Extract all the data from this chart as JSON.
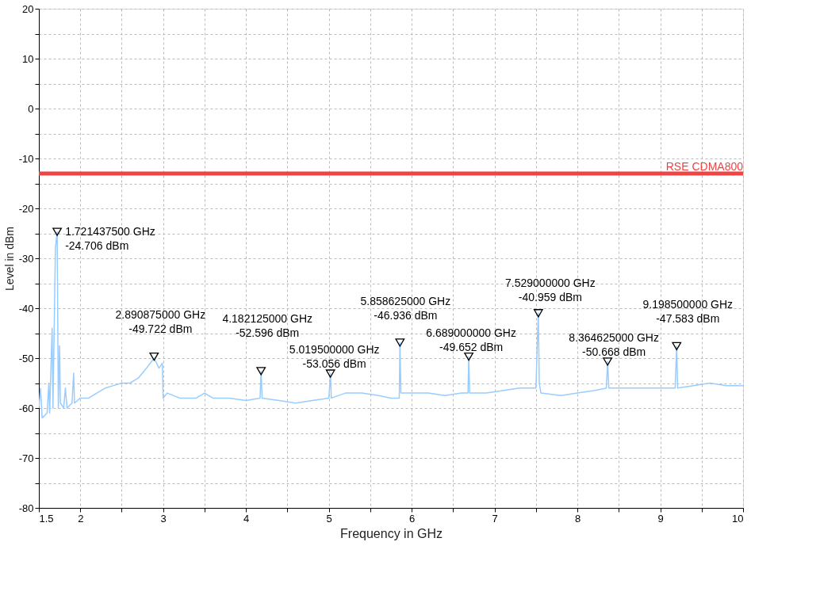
{
  "chart_data": {
    "type": "line",
    "xlabel": "Frequency in GHz",
    "ylabel": "Level in dBm",
    "xlim": [
      1.5,
      10
    ],
    "ylim": [
      -80,
      20
    ],
    "xticks": [
      1.5,
      2,
      {
        "value": 2.5,
        "label": null
      },
      3,
      {
        "value": 3.5,
        "label": null
      },
      4,
      {
        "value": 4.5,
        "label": null
      },
      5,
      {
        "value": 5.5,
        "label": null
      },
      6,
      {
        "value": 6.5,
        "label": null
      },
      7,
      {
        "value": 7.5,
        "label": null
      },
      8,
      {
        "value": 8.5,
        "label": null
      },
      9,
      {
        "value": 9.5,
        "label": null
      },
      10
    ],
    "yticks": [
      -80,
      {
        "value": -75,
        "label": null
      },
      -70,
      {
        "value": -65,
        "label": null
      },
      -60,
      {
        "value": -55,
        "label": null
      },
      -50,
      {
        "value": -45,
        "label": null
      },
      -40,
      {
        "value": -35,
        "label": null
      },
      -30,
      {
        "value": -25,
        "label": null
      },
      -20,
      {
        "value": -15,
        "label": null
      },
      -10,
      {
        "value": -5,
        "label": null
      },
      0,
      {
        "value": 5,
        "label": null
      },
      10,
      {
        "value": 15,
        "label": null
      },
      20
    ],
    "grid": true,
    "line_style": "solid",
    "series": [
      {
        "type": "line",
        "color": "#99ccff",
        "x": [
          1.5,
          1.52,
          1.54,
          1.6,
          1.62,
          1.63,
          1.66,
          1.67,
          1.7,
          1.721,
          1.735,
          1.75,
          1.76,
          1.8,
          1.82,
          1.84,
          1.9,
          1.92,
          1.93,
          2.0,
          2.1,
          2.2,
          2.3,
          2.4,
          2.5,
          2.6,
          2.7,
          2.8,
          2.891,
          2.95,
          2.99,
          3.0,
          3.05,
          3.2,
          3.4,
          3.5,
          3.6,
          3.8,
          4.0,
          4.17,
          4.182,
          4.195,
          4.4,
          4.6,
          4.8,
          5.0,
          5.0195,
          5.03,
          5.2,
          5.4,
          5.6,
          5.75,
          5.85,
          5.8586,
          5.87,
          6.0,
          6.2,
          6.4,
          6.6,
          6.68,
          6.689,
          6.7,
          6.9,
          7.1,
          7.3,
          7.5,
          7.52,
          7.529,
          7.54,
          7.56,
          7.8,
          8.0,
          8.2,
          8.35,
          8.3646,
          8.38,
          8.6,
          8.8,
          9.0,
          9.18,
          9.1985,
          9.21,
          9.4,
          9.6,
          9.8,
          10.0
        ],
        "values": [
          -60,
          -56,
          -62,
          -61,
          -55,
          -61,
          -44,
          -60,
          -28,
          -24.7,
          -60,
          -47.5,
          -59,
          -60,
          -56,
          -60,
          -59,
          -53,
          -59,
          -58,
          -58,
          -57,
          -56,
          -55.5,
          -55,
          -55,
          -54,
          -52,
          -50,
          -52,
          -51,
          -58,
          -57,
          -58,
          -58,
          -57,
          -58,
          -58,
          -58.5,
          -58,
          -52.6,
          -58,
          -58.5,
          -59,
          -58.5,
          -58,
          -53.1,
          -58,
          -57,
          -57,
          -57.5,
          -58,
          -58,
          -46.9,
          -57,
          -57,
          -57,
          -57.5,
          -57,
          -57,
          -49.7,
          -57,
          -57,
          -56.5,
          -56,
          -56,
          -45,
          -41,
          -55,
          -57,
          -57.5,
          -57,
          -56.5,
          -56,
          -50.7,
          -56,
          -56,
          -56,
          -56,
          -56,
          -47.6,
          -56,
          -55.5,
          -55,
          -55.5,
          -55.5
        ]
      },
      {
        "type": "scatter",
        "marker": "triangle",
        "color": "#000000",
        "x": [
          1.721,
          2.891,
          4.182,
          5.0195,
          5.8586,
          6.689,
          7.529,
          8.3646,
          9.1985
        ],
        "values": [
          -24.7,
          -49.7,
          -52.6,
          -53.1,
          -46.9,
          -49.7,
          -41,
          -50.7,
          -47.6
        ]
      }
    ],
    "ref_lines": [
      {
        "axis": "y",
        "value": -13,
        "label": "RSE CDMA800",
        "color": "#ee4444"
      }
    ],
    "annotations": [
      {
        "text": "1.721437500 GHz\n-24.706 dBm",
        "x": 1.7214375,
        "y": -24.706
      },
      {
        "text": "2.890875000 GHz\n-49.722 dBm",
        "x": 2.890875,
        "y": -49.722
      },
      {
        "text": "4.182125000 GHz\n-52.596 dBm",
        "x": 4.182125,
        "y": -52.596
      },
      {
        "text": "5.019500000 GHz\n-53.056 dBm",
        "x": 5.0195,
        "y": -53.056
      },
      {
        "text": "5.858625000 GHz\n-46.936 dBm",
        "x": 5.858625,
        "y": -46.936
      },
      {
        "text": "6.689000000 GHz\n-49.652 dBm",
        "x": 6.689,
        "y": -49.652
      },
      {
        "text": "7.529000000 GHz\n-40.959 dBm",
        "x": 7.529,
        "y": -40.959
      },
      {
        "text": "8.364625000 GHz\n-50.668 dBm",
        "x": 8.364625,
        "y": -50.668
      },
      {
        "text": "9.198500000 GHz\n-47.583 dBm",
        "x": 9.1985,
        "y": -47.583
      }
    ]
  }
}
